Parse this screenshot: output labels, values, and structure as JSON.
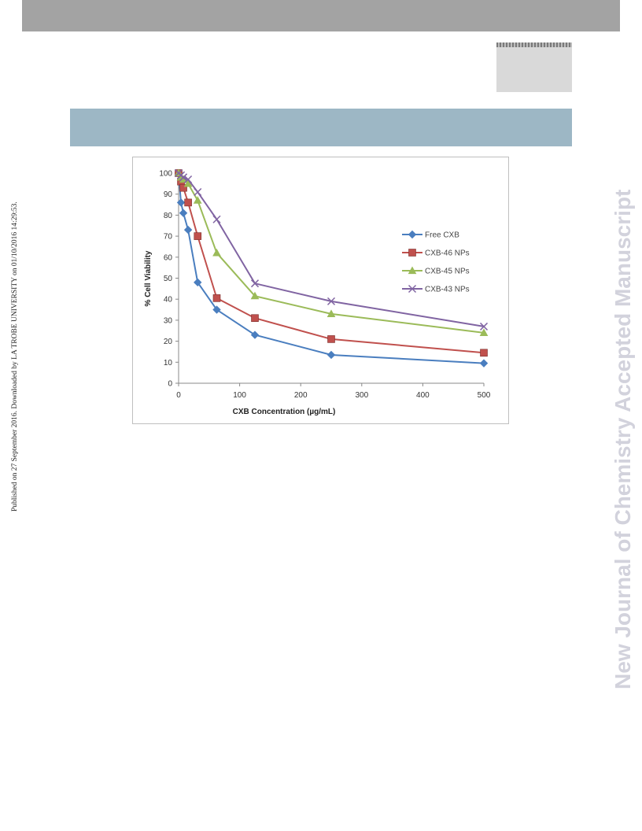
{
  "header": {
    "brand_color": "#a3a3a3",
    "band_color": "#9db7c5"
  },
  "side_note": "Published on 27 September 2016. Downloaded by LA TROBE UNIVERSITY on 01/10/2016 14:29:53.",
  "watermark": "New Journal of Chemistry Accepted Manuscript",
  "chart_data": {
    "type": "line",
    "title": "",
    "xlabel": "CXB Concentration (µg/mL)",
    "ylabel": "% Cell Viability",
    "xlim": [
      0,
      500
    ],
    "ylim": [
      0,
      100
    ],
    "xticks": [
      0,
      100,
      200,
      300,
      400,
      500
    ],
    "yticks": [
      0,
      10,
      20,
      30,
      40,
      50,
      60,
      70,
      80,
      90,
      100
    ],
    "grid": false,
    "legend_position": "right",
    "x": [
      0,
      3.9,
      7.8,
      15.6,
      31.25,
      62.5,
      125,
      250,
      500
    ],
    "series": [
      {
        "name": "Free CXB",
        "color": "#4a7ebf",
        "marker": "diamond",
        "values": [
          100,
          86,
          81,
          73,
          48,
          35,
          23,
          13.5,
          9.5
        ]
      },
      {
        "name": "CXB-46 NPs",
        "color": "#c0504d",
        "marker": "square",
        "values": [
          100,
          96,
          93,
          86,
          70,
          40.5,
          31,
          21,
          14.5
        ]
      },
      {
        "name": "CXB-45 NPs",
        "color": "#9bbb59",
        "marker": "triangle",
        "values": [
          100,
          98,
          97,
          95,
          87,
          62,
          41.5,
          33,
          24
        ]
      },
      {
        "name": "CXB-43 NPs",
        "color": "#8064a2",
        "marker": "x",
        "values": [
          100,
          99,
          98,
          97,
          91,
          78,
          47.5,
          39,
          27
        ]
      }
    ]
  }
}
